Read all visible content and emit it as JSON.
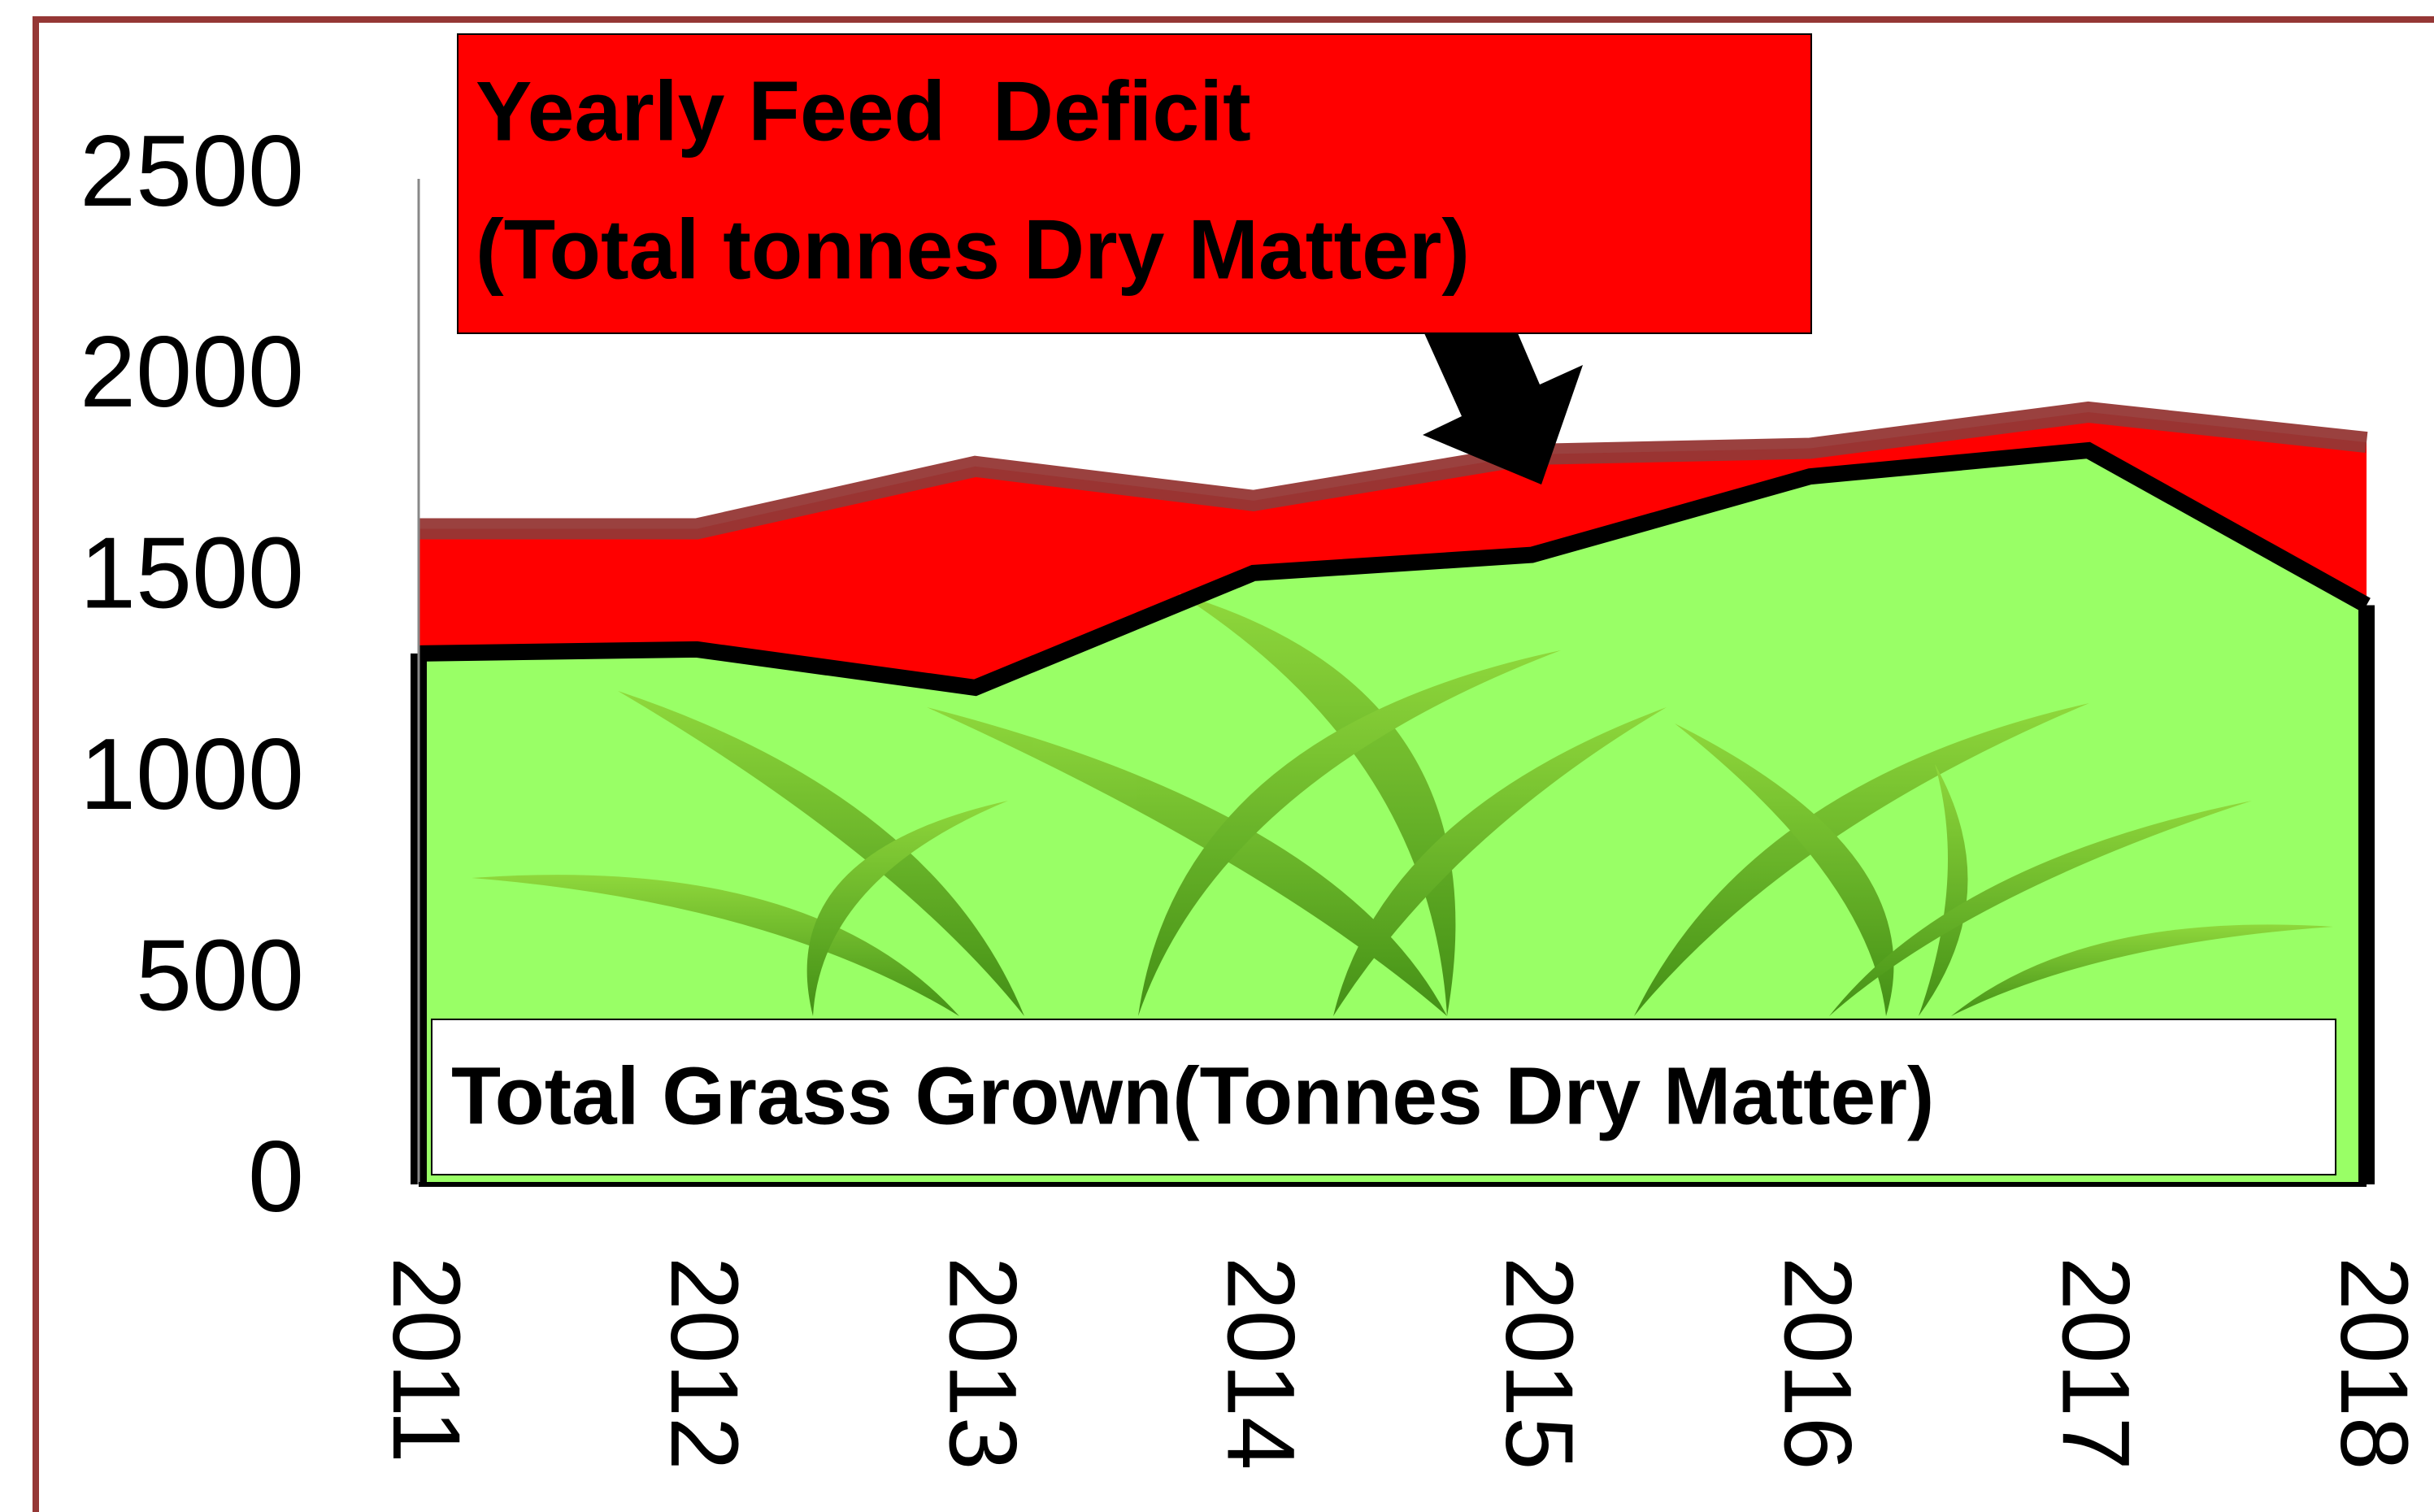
{
  "chart_data": {
    "type": "stacked_area",
    "categories": [
      "2011",
      "2012",
      "2013",
      "2014",
      "2015",
      "2016",
      "2017",
      "2018"
    ],
    "series": [
      {
        "color": "#99ff66",
        "line_color": "#000000",
        "values": [
          1320,
          1330,
          1235,
          1520,
          1565,
          1760,
          1825,
          1440
        ]
      },
      {
        "color": "#ff0000",
        "line_color": "#953735",
        "values": [
          310,
          300,
          550,
          180,
          250,
          70,
          95,
          405
        ]
      }
    ],
    "ylim": [
      0,
      2500
    ],
    "yticks": [
      0,
      500,
      1000,
      1500,
      2000,
      2500
    ],
    "annotations": [
      {
        "lines": [
          "Yearly Feed  Deficit",
          "(Total tonnes Dry Matter)"
        ],
        "color": "#ff0000"
      },
      {
        "lines": [
          "Total Grass Grown(Tonnes Dry Matter)"
        ],
        "color": "#ffffff"
      }
    ]
  }
}
